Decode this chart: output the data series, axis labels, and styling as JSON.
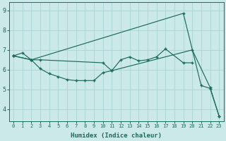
{
  "xlabel": "Humidex (Indice chaleur)",
  "bg_color": "#cce9e9",
  "line_color": "#1a6b5a",
  "grid_color": "#aad4d4",
  "xlim": [
    -0.5,
    23.5
  ],
  "ylim": [
    3.4,
    9.4
  ],
  "yticks": [
    4,
    5,
    6,
    7,
    8,
    9
  ],
  "xticks": [
    0,
    1,
    2,
    3,
    4,
    5,
    6,
    7,
    8,
    9,
    10,
    11,
    12,
    13,
    14,
    15,
    16,
    17,
    18,
    19,
    20,
    21,
    22,
    23
  ],
  "line_upper_x": [
    0,
    1,
    2,
    19,
    21,
    22,
    23
  ],
  "line_upper_y": [
    6.7,
    6.85,
    6.5,
    8.85,
    5.2,
    5.05,
    3.65
  ],
  "line_mid_x": [
    0,
    2,
    3,
    10,
    11,
    12,
    13,
    14,
    15,
    16,
    17,
    19,
    20
  ],
  "line_mid_y": [
    6.7,
    6.5,
    6.5,
    6.35,
    5.95,
    6.5,
    6.65,
    6.45,
    6.5,
    6.65,
    7.05,
    6.35,
    6.35
  ],
  "line_lower_x": [
    0,
    2,
    3,
    4,
    5,
    6,
    7,
    8,
    9,
    10,
    11,
    20,
    22,
    23
  ],
  "line_lower_y": [
    6.7,
    6.5,
    6.05,
    5.8,
    5.65,
    5.5,
    5.45,
    5.45,
    5.45,
    5.85,
    5.95,
    7.0,
    5.1,
    3.65
  ]
}
